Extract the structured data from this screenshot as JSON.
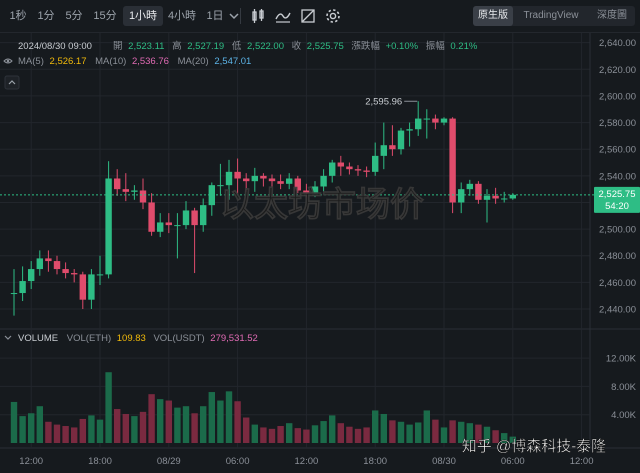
{
  "toolbar": {
    "timeframes": [
      "1秒",
      "1分",
      "5分",
      "15分",
      "1小時",
      "4小時",
      "1日"
    ],
    "active_timeframe": "1小時",
    "icons": [
      "chevron-down-icon",
      "candle-type-icon",
      "indicator-icon",
      "drawing-icon",
      "settings-icon"
    ],
    "views": [
      "原生版",
      "TradingView",
      "深度圖"
    ],
    "active_view": "原生版"
  },
  "ohlc": {
    "datetime": "2024/08/30 09:00",
    "open_label": "開",
    "open": "2,523.11",
    "high_label": "高",
    "high": "2,527.19",
    "low_label": "低",
    "low": "2,522.00",
    "close_label": "收",
    "close": "2,525.75",
    "change_label": "漲跌幅",
    "change": "+0.10%",
    "amp_label": "振幅",
    "amp": "0.21%"
  },
  "ma": [
    {
      "label": "MA(5)",
      "value": "2,526.17",
      "color": "#f0b90b"
    },
    {
      "label": "MA(10)",
      "value": "2,536.76",
      "color": "#e06bb4"
    },
    {
      "label": "MA(20)",
      "value": "2,547.01",
      "color": "#5cb3e6"
    }
  ],
  "volume_legend": {
    "title": "VOLUME",
    "vol_eth_label": "VOL(ETH)",
    "vol_eth": "109.83",
    "vol_usdt_label": "VOL(USDT)",
    "vol_usdt": "279,531.52"
  },
  "price_tag": {
    "price": "2,525.75",
    "countdown": "54:20"
  },
  "high_marker": "2,595.96",
  "overlay_title": "以太坊市场价",
  "watermark": "知乎 @博森科技-泰隆",
  "colors": {
    "up": "#2ebd85",
    "down": "#e04c6c",
    "volume_up": "#1b6b4a",
    "volume_down": "#7a2a40",
    "background": "#161a1e",
    "grid": "#22262c",
    "axis_text": "#8b9098"
  },
  "chart_data": {
    "type": "candlestick",
    "symbol": "ETH/USDT",
    "interval": "1小時",
    "price_axis": {
      "ticks": [
        2440,
        2460,
        2480,
        2500,
        2520,
        2540,
        2560,
        2580,
        2600,
        2620,
        2640
      ],
      "range": [
        2428,
        2645
      ]
    },
    "volume_axis": {
      "ticks": [
        "4.00K",
        "8.00K",
        "12.00K"
      ],
      "tick_values": [
        4000,
        8000,
        12000
      ],
      "range": [
        0,
        13000
      ]
    },
    "x_labels": [
      "12:00",
      "18:00",
      "08/29",
      "06:00",
      "12:00",
      "18:00",
      "08/30",
      "06:00",
      "12:00"
    ],
    "x_label_candle_index": [
      2,
      10,
      18,
      26,
      34,
      42,
      50,
      58,
      66
    ],
    "candles": [
      {
        "o": 2452,
        "h": 2470,
        "l": 2435,
        "c": 2452,
        "v": 5800
      },
      {
        "o": 2452,
        "h": 2472,
        "l": 2446,
        "c": 2461,
        "v": 3800
      },
      {
        "o": 2461,
        "h": 2476,
        "l": 2455,
        "c": 2470,
        "v": 4200
      },
      {
        "o": 2470,
        "h": 2484,
        "l": 2465,
        "c": 2478,
        "v": 5200
      },
      {
        "o": 2478,
        "h": 2484,
        "l": 2468,
        "c": 2476,
        "v": 3000
      },
      {
        "o": 2476,
        "h": 2480,
        "l": 2466,
        "c": 2470,
        "v": 2600
      },
      {
        "o": 2470,
        "h": 2475,
        "l": 2463,
        "c": 2467,
        "v": 2400
      },
      {
        "o": 2467,
        "h": 2470,
        "l": 2460,
        "c": 2466,
        "v": 2200
      },
      {
        "o": 2466,
        "h": 2468,
        "l": 2440,
        "c": 2447,
        "v": 3400
      },
      {
        "o": 2447,
        "h": 2470,
        "l": 2440,
        "c": 2466,
        "v": 3900
      },
      {
        "o": 2466,
        "h": 2480,
        "l": 2458,
        "c": 2466,
        "v": 3300
      },
      {
        "o": 2466,
        "h": 2551,
        "l": 2463,
        "c": 2538,
        "v": 10000
      },
      {
        "o": 2538,
        "h": 2545,
        "l": 2525,
        "c": 2530,
        "v": 4800
      },
      {
        "o": 2530,
        "h": 2542,
        "l": 2521,
        "c": 2528,
        "v": 4100
      },
      {
        "o": 2528,
        "h": 2533,
        "l": 2522,
        "c": 2529,
        "v": 3800
      },
      {
        "o": 2529,
        "h": 2538,
        "l": 2515,
        "c": 2520,
        "v": 4400
      },
      {
        "o": 2520,
        "h": 2527,
        "l": 2495,
        "c": 2498,
        "v": 6900
      },
      {
        "o": 2498,
        "h": 2512,
        "l": 2494,
        "c": 2505,
        "v": 6200
      },
      {
        "o": 2505,
        "h": 2512,
        "l": 2497,
        "c": 2503,
        "v": 6000
      },
      {
        "o": 2503,
        "h": 2512,
        "l": 2478,
        "c": 2503,
        "v": 5000
      },
      {
        "o": 2503,
        "h": 2521,
        "l": 2500,
        "c": 2514,
        "v": 5200
      },
      {
        "o": 2514,
        "h": 2516,
        "l": 2467,
        "c": 2503,
        "v": 4200
      },
      {
        "o": 2503,
        "h": 2523,
        "l": 2498,
        "c": 2518,
        "v": 5200
      },
      {
        "o": 2518,
        "h": 2535,
        "l": 2510,
        "c": 2533,
        "v": 7200
      },
      {
        "o": 2533,
        "h": 2549,
        "l": 2525,
        "c": 2533,
        "v": 6000
      },
      {
        "o": 2533,
        "h": 2552,
        "l": 2522,
        "c": 2543,
        "v": 7300
      },
      {
        "o": 2543,
        "h": 2553,
        "l": 2526,
        "c": 2538,
        "v": 5900
      },
      {
        "o": 2538,
        "h": 2542,
        "l": 2528,
        "c": 2536,
        "v": 3600
      },
      {
        "o": 2536,
        "h": 2546,
        "l": 2528,
        "c": 2540,
        "v": 2600
      },
      {
        "o": 2540,
        "h": 2542,
        "l": 2532,
        "c": 2538,
        "v": 2200
      },
      {
        "o": 2538,
        "h": 2541,
        "l": 2532,
        "c": 2536,
        "v": 2000
      },
      {
        "o": 2536,
        "h": 2541,
        "l": 2530,
        "c": 2534,
        "v": 2400
      },
      {
        "o": 2534,
        "h": 2542,
        "l": 2530,
        "c": 2538,
        "v": 2800
      },
      {
        "o": 2538,
        "h": 2540,
        "l": 2527,
        "c": 2529,
        "v": 2100
      },
      {
        "o": 2529,
        "h": 2534,
        "l": 2524,
        "c": 2527,
        "v": 1900
      },
      {
        "o": 2527,
        "h": 2536,
        "l": 2524,
        "c": 2532,
        "v": 2500
      },
      {
        "o": 2532,
        "h": 2545,
        "l": 2528,
        "c": 2540,
        "v": 3100
      },
      {
        "o": 2540,
        "h": 2552,
        "l": 2535,
        "c": 2550,
        "v": 3900
      },
      {
        "o": 2550,
        "h": 2555,
        "l": 2540,
        "c": 2547,
        "v": 2800
      },
      {
        "o": 2547,
        "h": 2550,
        "l": 2541,
        "c": 2545,
        "v": 2300
      },
      {
        "o": 2545,
        "h": 2548,
        "l": 2540,
        "c": 2544,
        "v": 2000
      },
      {
        "o": 2544,
        "h": 2547,
        "l": 2539,
        "c": 2543,
        "v": 2200
      },
      {
        "o": 2543,
        "h": 2565,
        "l": 2540,
        "c": 2555,
        "v": 4600
      },
      {
        "o": 2555,
        "h": 2580,
        "l": 2545,
        "c": 2563,
        "v": 4100
      },
      {
        "o": 2563,
        "h": 2578,
        "l": 2555,
        "c": 2560,
        "v": 3200
      },
      {
        "o": 2560,
        "h": 2576,
        "l": 2556,
        "c": 2574,
        "v": 3000
      },
      {
        "o": 2574,
        "h": 2580,
        "l": 2562,
        "c": 2575,
        "v": 2600
      },
      {
        "o": 2575,
        "h": 2596,
        "l": 2570,
        "c": 2583,
        "v": 2900
      },
      {
        "o": 2583,
        "h": 2590,
        "l": 2568,
        "c": 2583,
        "v": 4600
      },
      {
        "o": 2583,
        "h": 2586,
        "l": 2575,
        "c": 2580,
        "v": 3300
      },
      {
        "o": 2580,
        "h": 2584,
        "l": 2578,
        "c": 2583,
        "v": 2200
      },
      {
        "o": 2583,
        "h": 2584,
        "l": 2512,
        "c": 2520,
        "v": 3200
      },
      {
        "o": 2520,
        "h": 2535,
        "l": 2512,
        "c": 2530,
        "v": 3000
      },
      {
        "o": 2530,
        "h": 2537,
        "l": 2525,
        "c": 2534,
        "v": 2800
      },
      {
        "o": 2534,
        "h": 2536,
        "l": 2519,
        "c": 2522,
        "v": 2600
      },
      {
        "o": 2522,
        "h": 2530,
        "l": 2505,
        "c": 2525,
        "v": 2300
      },
      {
        "o": 2525,
        "h": 2531,
        "l": 2519,
        "c": 2523,
        "v": 1800
      },
      {
        "o": 2523,
        "h": 2528,
        "l": 2520,
        "c": 2523,
        "v": 1400
      },
      {
        "o": 2523,
        "h": 2527,
        "l": 2522,
        "c": 2525.75,
        "v": 900
      }
    ]
  }
}
